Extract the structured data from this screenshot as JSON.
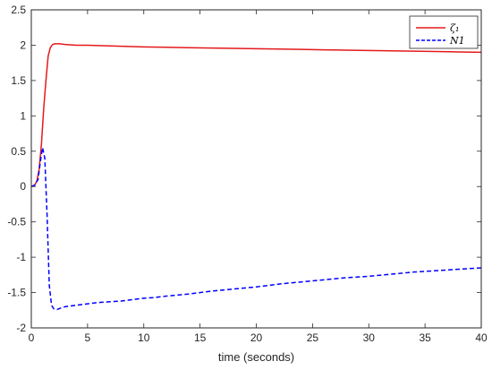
{
  "chart_data": {
    "type": "line",
    "title": "",
    "xlabel": "time (seconds)",
    "ylabel": "",
    "xlim": [
      0,
      40
    ],
    "ylim": [
      -2,
      2.5
    ],
    "grid": false,
    "legend_position": "top-right",
    "x_ticks": [
      0,
      5,
      10,
      15,
      20,
      25,
      30,
      35,
      40
    ],
    "y_ticks": [
      -2,
      -1.5,
      -1,
      -0.5,
      0,
      0.5,
      1,
      1.5,
      2,
      2.5
    ],
    "x_tick_labels": [
      "0",
      "5",
      "10",
      "15",
      "20",
      "25",
      "30",
      "35",
      "40"
    ],
    "y_tick_labels": [
      "-2",
      "-1.5",
      "-1",
      "-0.5",
      "0",
      "0.5",
      "1",
      "1.5",
      "2",
      "2.5"
    ],
    "series": [
      {
        "name": "ζ₁",
        "color": "#e41a1c",
        "style": "solid",
        "x": [
          0,
          0.3,
          0.5,
          0.7,
          0.9,
          1.1,
          1.3,
          1.5,
          1.7,
          1.9,
          2.1,
          2.5,
          3,
          4,
          5,
          6,
          7,
          8,
          9,
          10,
          12,
          14,
          16,
          18,
          20,
          22,
          24,
          26,
          28,
          30,
          32,
          34,
          36,
          38,
          40
        ],
        "y": [
          0,
          0.02,
          0.08,
          0.25,
          0.6,
          1.1,
          1.5,
          1.85,
          1.97,
          2.01,
          2.02,
          2.02,
          2.01,
          2.0,
          2.0,
          1.995,
          1.99,
          1.985,
          1.98,
          1.975,
          1.97,
          1.965,
          1.96,
          1.955,
          1.95,
          1.945,
          1.94,
          1.935,
          1.93,
          1.925,
          1.92,
          1.915,
          1.91,
          1.905,
          1.9
        ]
      },
      {
        "name": "N1",
        "color": "#0000ff",
        "style": "dashed",
        "x": [
          0,
          0.3,
          0.6,
          0.8,
          1.0,
          1.2,
          1.4,
          1.6,
          1.8,
          2.0,
          2.3,
          2.6,
          3,
          4,
          5,
          6,
          7,
          8,
          9,
          10,
          11,
          12,
          14,
          16,
          18,
          20,
          22,
          24,
          26,
          28,
          30,
          32,
          34,
          36,
          38,
          40
        ],
        "y": [
          0,
          0.02,
          0.1,
          0.35,
          0.55,
          0.4,
          -0.4,
          -1.4,
          -1.68,
          -1.73,
          -1.74,
          -1.72,
          -1.7,
          -1.68,
          -1.66,
          -1.64,
          -1.63,
          -1.62,
          -1.6,
          -1.58,
          -1.57,
          -1.55,
          -1.52,
          -1.48,
          -1.45,
          -1.42,
          -1.38,
          -1.35,
          -1.32,
          -1.29,
          -1.27,
          -1.24,
          -1.21,
          -1.19,
          -1.17,
          -1.15
        ]
      }
    ]
  }
}
